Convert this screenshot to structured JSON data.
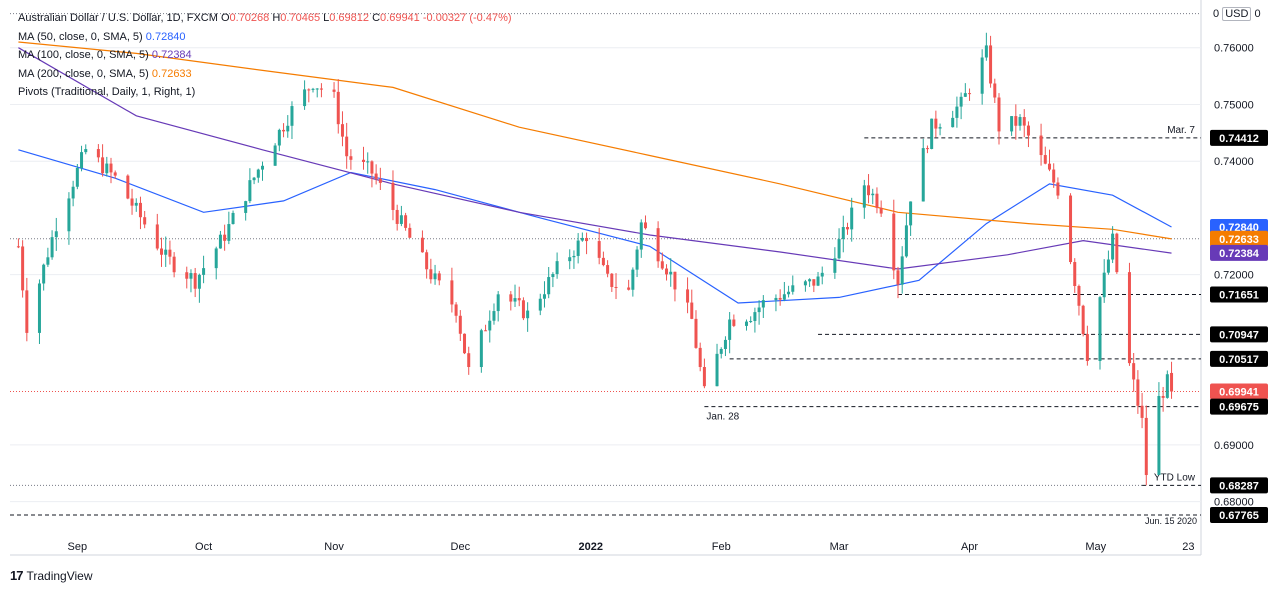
{
  "legend": {
    "symbol": "Australian Dollar / U.S. Dollar, 1D, FXCM",
    "ohlc": {
      "o_label": "O",
      "o": "0.70268",
      "h_label": "H",
      "h": "0.70465",
      "l_label": "L",
      "l": "0.69812",
      "c_label": "C",
      "c": "0.69941",
      "chg": "-0.00327 (-0.47%)"
    },
    "ma50": {
      "label": "MA (50, close, 0, SMA, 5)",
      "value": "0.72840"
    },
    "ma100": {
      "label": "MA (100, close, 0, SMA, 5)",
      "value": "0.72384"
    },
    "ma200": {
      "label": "MA (200, close, 0, SMA, 5)",
      "value": "0.72633"
    },
    "pivots": {
      "label": "Pivots (Traditional, Daily, 1, Right, 1)"
    }
  },
  "currency_selector": {
    "zero": "0",
    "currency": "USD",
    "suffix": "0"
  },
  "footer": {
    "logo": "17",
    "brand": "TradingView"
  },
  "colors": {
    "up": "#26a69a",
    "down": "#ef5350",
    "ma50": "#2962ff",
    "ma100": "#673ab7",
    "ma200": "#f57c00",
    "grid": "#eceef2",
    "text": "#131722"
  },
  "chart_data": {
    "type": "candlestick",
    "title": "Australian Dollar / U.S. Dollar, 1D, FXCM",
    "ylim": [
      0.675,
      0.767
    ],
    "y_ticks": [
      "0.76000",
      "0.75000",
      "0.74000",
      "0.72000",
      "0.69000",
      "0.68000"
    ],
    "x_ticks": [
      {
        "label": "Sep",
        "date": "2021-09-01"
      },
      {
        "label": "Oct",
        "date": "2021-10-01"
      },
      {
        "label": "Nov",
        "date": "2021-11-01"
      },
      {
        "label": "Dec",
        "date": "2021-12-01"
      },
      {
        "label": "2022",
        "date": "2022-01-01"
      },
      {
        "label": "Feb",
        "date": "2022-02-01"
      },
      {
        "label": "Mar",
        "date": "2022-03-01"
      },
      {
        "label": "Apr",
        "date": "2022-04-01"
      },
      {
        "label": "May",
        "date": "2022-05-01"
      },
      {
        "label": "23",
        "date": "2022-05-23"
      }
    ],
    "close_anchors": [
      [
        "2021-08-18",
        0.725
      ],
      [
        "2021-08-20",
        0.711
      ],
      [
        "2021-08-27",
        0.729
      ],
      [
        "2021-09-03",
        0.742
      ],
      [
        "2021-09-10",
        0.737
      ],
      [
        "2021-09-17",
        0.729
      ],
      [
        "2021-09-22",
        0.723
      ],
      [
        "2021-09-29",
        0.719
      ],
      [
        "2021-10-06",
        0.727
      ],
      [
        "2021-10-15",
        0.74
      ],
      [
        "2021-10-22",
        0.749
      ],
      [
        "2021-10-27",
        0.754
      ],
      [
        "2021-11-01",
        0.751
      ],
      [
        "2021-11-04",
        0.741
      ],
      [
        "2021-11-10",
        0.738
      ],
      [
        "2021-11-17",
        0.729
      ],
      [
        "2021-11-24",
        0.72
      ],
      [
        "2021-11-30",
        0.714
      ],
      [
        "2021-12-03",
        0.703
      ],
      [
        "2021-12-10",
        0.717
      ],
      [
        "2021-12-17",
        0.713
      ],
      [
        "2021-12-24",
        0.721
      ],
      [
        "2021-12-31",
        0.727
      ],
      [
        "2022-01-05",
        0.719
      ],
      [
        "2022-01-10",
        0.717
      ],
      [
        "2022-01-13",
        0.729
      ],
      [
        "2022-01-20",
        0.72
      ],
      [
        "2022-01-25",
        0.712
      ],
      [
        "2022-01-28",
        0.699
      ],
      [
        "2022-02-03",
        0.712
      ],
      [
        "2022-02-08",
        0.713
      ],
      [
        "2022-02-11",
        0.715
      ],
      [
        "2022-02-17",
        0.717
      ],
      [
        "2022-02-24",
        0.719
      ],
      [
        "2022-03-02",
        0.727
      ],
      [
        "2022-03-07",
        0.736
      ],
      [
        "2022-03-11",
        0.732
      ],
      [
        "2022-03-15",
        0.719
      ],
      [
        "2022-03-18",
        0.734
      ],
      [
        "2022-03-23",
        0.746
      ],
      [
        "2022-03-30",
        0.75
      ],
      [
        "2022-04-05",
        0.759
      ],
      [
        "2022-04-08",
        0.746
      ],
      [
        "2022-04-13",
        0.747
      ],
      [
        "2022-04-19",
        0.739
      ],
      [
        "2022-04-22",
        0.735
      ],
      [
        "2022-04-27",
        0.715
      ],
      [
        "2022-04-29",
        0.706
      ],
      [
        "2022-05-05",
        0.726
      ],
      [
        "2022-05-09",
        0.704
      ],
      [
        "2022-05-12",
        0.694
      ],
      [
        "2022-05-13",
        0.685
      ],
      [
        "2022-05-16",
        0.698
      ],
      [
        "2022-05-18",
        0.701
      ],
      [
        "2022-05-19",
        0.6994
      ]
    ],
    "last_candle": {
      "open": 0.70268,
      "high": 0.70465,
      "low": 0.69812,
      "close": 0.69941
    },
    "series": [
      {
        "name": "MA (50, close, 0, SMA, 5)",
        "last": 0.7284,
        "points": [
          [
            "2021-08-18",
            0.742
          ],
          [
            "2021-09-10",
            0.737
          ],
          [
            "2021-10-01",
            0.731
          ],
          [
            "2021-10-20",
            0.733
          ],
          [
            "2021-11-05",
            0.738
          ],
          [
            "2021-11-25",
            0.735
          ],
          [
            "2021-12-20",
            0.73
          ],
          [
            "2022-01-15",
            0.725
          ],
          [
            "2022-02-05",
            0.715
          ],
          [
            "2022-03-01",
            0.716
          ],
          [
            "2022-03-20",
            0.719
          ],
          [
            "2022-04-05",
            0.729
          ],
          [
            "2022-04-20",
            0.736
          ],
          [
            "2022-05-05",
            0.734
          ],
          [
            "2022-05-19",
            0.7284
          ]
        ]
      },
      {
        "name": "MA (100, close, 0, SMA, 5)",
        "last": 0.72384,
        "points": [
          [
            "2021-08-18",
            0.76
          ],
          [
            "2021-09-15",
            0.748
          ],
          [
            "2021-10-15",
            0.742
          ],
          [
            "2021-11-15",
            0.736
          ],
          [
            "2021-12-15",
            0.731
          ],
          [
            "2022-01-15",
            0.727
          ],
          [
            "2022-02-15",
            0.724
          ],
          [
            "2022-03-15",
            0.721
          ],
          [
            "2022-04-10",
            0.7235
          ],
          [
            "2022-04-28",
            0.726
          ],
          [
            "2022-05-19",
            0.7238
          ]
        ]
      },
      {
        "name": "MA (200, close, 0, SMA, 5)",
        "last": 0.72633,
        "points": [
          [
            "2021-08-18",
            0.761
          ],
          [
            "2021-09-15",
            0.759
          ],
          [
            "2021-10-15",
            0.756
          ],
          [
            "2021-11-15",
            0.753
          ],
          [
            "2021-12-15",
            0.746
          ],
          [
            "2022-01-15",
            0.741
          ],
          [
            "2022-02-15",
            0.736
          ],
          [
            "2022-03-15",
            0.731
          ],
          [
            "2022-04-15",
            0.729
          ],
          [
            "2022-05-05",
            0.728
          ],
          [
            "2022-05-19",
            0.7263
          ]
        ]
      }
    ],
    "levels": [
      {
        "price": "0.74412",
        "value": 0.74412,
        "from": "2022-03-07",
        "label": "Mar. 7",
        "badge": "#000000"
      },
      {
        "price": "0.72840",
        "value": 0.7284,
        "from": null,
        "label": "",
        "badge": "#2962ff"
      },
      {
        "price": "0.72633",
        "value": 0.72633,
        "from": null,
        "label": "",
        "badge": "#f57c00"
      },
      {
        "price": "0.72384",
        "value": 0.72384,
        "from": null,
        "label": "",
        "badge": "#673ab7"
      },
      {
        "price": "0.71651",
        "value": 0.71651,
        "from": "2022-03-15",
        "label": "",
        "badge": "#000000"
      },
      {
        "price": "0.70947",
        "value": 0.70947,
        "from": "2022-02-24",
        "label": "",
        "badge": "#000000"
      },
      {
        "price": "0.70517",
        "value": 0.70517,
        "from": "2022-02-03",
        "label": "",
        "badge": "#000000"
      },
      {
        "price": "0.69941",
        "value": 0.69941,
        "from": null,
        "label": "",
        "badge": "#ef5350"
      },
      {
        "price": "0.69675",
        "value": 0.69675,
        "from": "2022-01-28",
        "label": "Jan. 28",
        "badge": "#000000"
      },
      {
        "price": "0.68287",
        "value": 0.68287,
        "from": "2022-05-12",
        "label": "YTD Low",
        "badge": "#000000"
      },
      {
        "price": "0.67765",
        "value": 0.67765,
        "from": null,
        "label": "Jun. 15 2020",
        "badge": "#000000"
      }
    ],
    "top_dotted_level": 0.766
  }
}
